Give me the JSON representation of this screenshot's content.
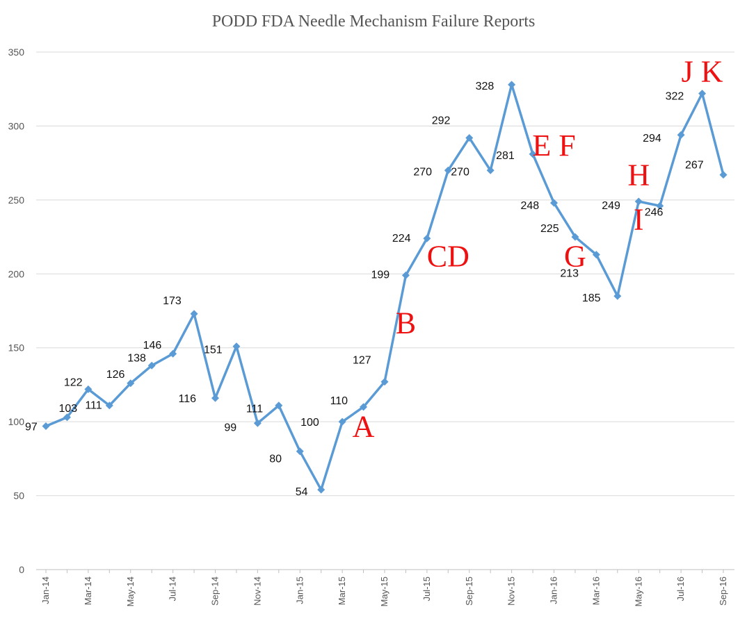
{
  "chart_data": {
    "type": "line",
    "title": "PODD FDA Needle Mechanism Failure Reports",
    "xlabel": "",
    "ylabel": "",
    "ylim": [
      0,
      350
    ],
    "yticks": [
      0,
      50,
      100,
      150,
      200,
      250,
      300,
      350
    ],
    "grid": true,
    "legend": "none",
    "colors": {
      "series": "#5b9bd5",
      "annotation": "#ee1111"
    },
    "x": [
      "Jan-14",
      "Feb-14",
      "Mar-14",
      "Apr-14",
      "May-14",
      "Jun-14",
      "Jul-14",
      "Aug-14",
      "Sep-14",
      "Oct-14",
      "Nov-14",
      "Dec-14",
      "Jan-15",
      "Feb-15",
      "Mar-15",
      "Apr-15",
      "May-15",
      "Jun-15",
      "Jul-15",
      "Aug-15",
      "Sep-15",
      "Oct-15",
      "Nov-15",
      "Dec-15",
      "Jan-16",
      "Feb-16",
      "Mar-16",
      "Apr-16",
      "May-16",
      "Jun-16",
      "Jul-16",
      "Aug-16",
      "Sep-16"
    ],
    "xtick_labels": [
      "Jan-14",
      "",
      "Mar-14",
      "",
      "May-14",
      "",
      "Jul-14",
      "",
      "Sep-14",
      "",
      "Nov-14",
      "",
      "Jan-15",
      "",
      "Mar-15",
      "",
      "May-15",
      "",
      "Jul-15",
      "",
      "Sep-15",
      "",
      "Nov-15",
      "",
      "Jan-16",
      "",
      "Mar-16",
      "",
      "May-16",
      "",
      "Jul-16",
      "",
      "Sep-16"
    ],
    "series": [
      {
        "values": [
          97,
          103,
          122,
          111,
          126,
          138,
          146,
          173,
          116,
          151,
          99,
          111,
          80,
          54,
          100,
          110,
          127,
          199,
          224,
          270,
          292,
          270,
          328,
          281,
          248,
          225,
          213,
          185,
          249,
          246,
          294,
          322,
          267
        ],
        "data_labels": [
          "97",
          "103",
          "122",
          "111",
          "126",
          "138",
          "146",
          "173",
          "116",
          "151",
          "99",
          "111",
          "80",
          "54",
          "100",
          "110",
          "127",
          "199",
          "224",
          "270",
          "292",
          "270",
          "328",
          "281",
          "248",
          "225",
          "213",
          "185",
          "249",
          "246",
          "294",
          "322",
          "267"
        ]
      }
    ],
    "annotations": [
      {
        "text": "A",
        "x": "Apr-15",
        "y": 90
      },
      {
        "text": "B",
        "x": "Jun-15",
        "y": 160
      },
      {
        "text": "CD",
        "x": "Aug-15",
        "y": 205
      },
      {
        "text": "E F",
        "x": "Jan-16",
        "y": 280
      },
      {
        "text": "G",
        "x": "Feb-16",
        "y": 205
      },
      {
        "text": "H",
        "x": "May-16",
        "y": 260
      },
      {
        "text": "I",
        "x": "May-16",
        "y": 230
      },
      {
        "text": "J K",
        "x": "Aug-16",
        "y": 330
      }
    ]
  }
}
